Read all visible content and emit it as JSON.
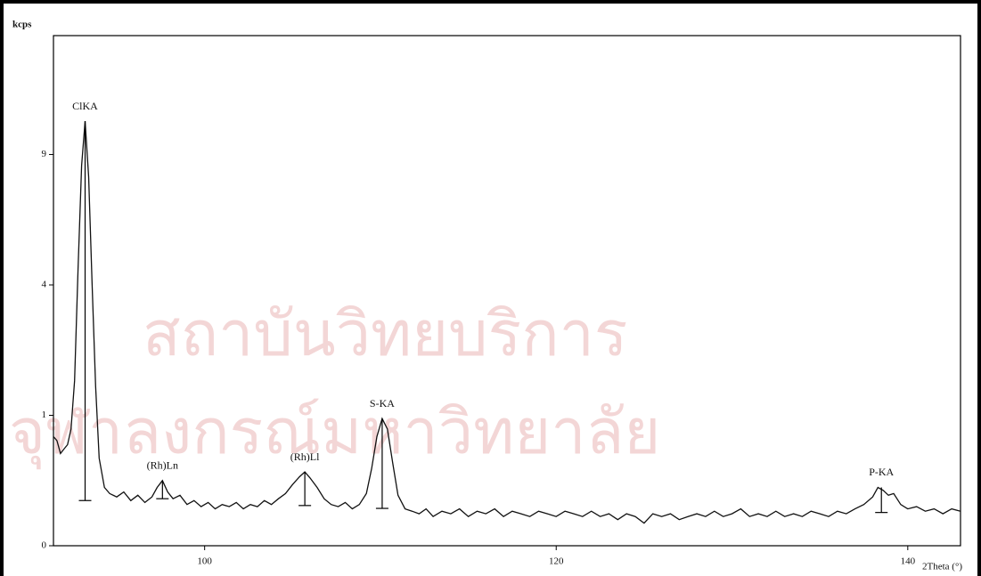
{
  "chart_data": {
    "type": "line",
    "y_axis_title": "kcps",
    "x_axis_title": "2Theta (°)",
    "watermark": [
      "สถาบันวิทยบริการ",
      "จุฬาลงกรณ์มหาวิทยาลัย"
    ],
    "y_scale": "sqrt",
    "xlim": [
      91.4,
      143.0
    ],
    "ylim": [
      0,
      15.3
    ],
    "xticks": [
      100,
      120,
      140
    ],
    "yticks": [
      0,
      1,
      4,
      9
    ],
    "series": [
      {
        "color": "#111111",
        "x": [
          91.4,
          91.6,
          91.8,
          92.0,
          92.2,
          92.4,
          92.6,
          92.8,
          93.0,
          93.2,
          93.4,
          93.6,
          93.8,
          94.0,
          94.3,
          94.6,
          95.0,
          95.4,
          95.8,
          96.2,
          96.6,
          97.0,
          97.3,
          97.6,
          97.9,
          98.2,
          98.6,
          99.0,
          99.4,
          99.8,
          100.2,
          100.6,
          101.0,
          101.4,
          101.8,
          102.2,
          102.6,
          103.0,
          103.4,
          103.8,
          104.2,
          104.6,
          105.0,
          105.4,
          105.7,
          106.0,
          106.4,
          106.8,
          107.2,
          107.6,
          108.0,
          108.4,
          108.8,
          109.2,
          109.5,
          109.8,
          110.1,
          110.4,
          110.7,
          111.0,
          111.4,
          111.8,
          112.2,
          112.6,
          113.0,
          113.5,
          114.0,
          114.5,
          115.0,
          115.5,
          116.0,
          116.5,
          117.0,
          117.5,
          118.0,
          118.5,
          119.0,
          119.5,
          120.0,
          120.5,
          121.0,
          121.5,
          122.0,
          122.5,
          123.0,
          123.5,
          124.0,
          124.5,
          125.0,
          125.5,
          126.0,
          126.5,
          127.0,
          127.5,
          128.0,
          128.5,
          129.0,
          129.5,
          130.0,
          130.5,
          131.0,
          131.5,
          132.0,
          132.5,
          133.0,
          133.5,
          134.0,
          134.5,
          135.0,
          135.5,
          136.0,
          136.5,
          137.0,
          137.5,
          138.0,
          138.3,
          138.6,
          138.9,
          139.2,
          139.6,
          140.0,
          140.5,
          141.0,
          141.5,
          142.0,
          142.5,
          143.0
        ],
        "values": [
          0.7,
          0.65,
          0.5,
          0.55,
          0.6,
          0.8,
          1.6,
          4.5,
          8.5,
          10.6,
          8.0,
          4.0,
          1.5,
          0.45,
          0.2,
          0.16,
          0.14,
          0.17,
          0.12,
          0.15,
          0.11,
          0.14,
          0.2,
          0.25,
          0.17,
          0.13,
          0.15,
          0.1,
          0.12,
          0.09,
          0.11,
          0.08,
          0.1,
          0.09,
          0.11,
          0.08,
          0.1,
          0.09,
          0.12,
          0.1,
          0.13,
          0.16,
          0.22,
          0.28,
          0.32,
          0.27,
          0.2,
          0.13,
          0.1,
          0.09,
          0.11,
          0.08,
          0.1,
          0.16,
          0.35,
          0.7,
          0.95,
          0.8,
          0.4,
          0.15,
          0.08,
          0.07,
          0.06,
          0.08,
          0.05,
          0.07,
          0.06,
          0.08,
          0.05,
          0.07,
          0.06,
          0.08,
          0.05,
          0.07,
          0.06,
          0.05,
          0.07,
          0.06,
          0.05,
          0.07,
          0.06,
          0.05,
          0.07,
          0.05,
          0.06,
          0.04,
          0.06,
          0.05,
          0.03,
          0.06,
          0.05,
          0.06,
          0.04,
          0.05,
          0.06,
          0.05,
          0.07,
          0.05,
          0.06,
          0.08,
          0.05,
          0.06,
          0.05,
          0.07,
          0.05,
          0.06,
          0.05,
          0.07,
          0.06,
          0.05,
          0.07,
          0.06,
          0.08,
          0.1,
          0.14,
          0.2,
          0.18,
          0.15,
          0.16,
          0.1,
          0.08,
          0.09,
          0.07,
          0.08,
          0.06,
          0.08,
          0.07
        ]
      }
    ],
    "peaks": [
      {
        "label": "ClKA",
        "x": 93.2,
        "top": 10.6,
        "bottom": 0.12
      },
      {
        "label": "(Rh)Ln",
        "x": 97.6,
        "top": 0.25,
        "bottom": 0.13
      },
      {
        "label": "(Rh)Ll",
        "x": 105.7,
        "top": 0.32,
        "bottom": 0.095
      },
      {
        "label": "S-KA",
        "x": 110.1,
        "top": 0.95,
        "bottom": 0.082
      },
      {
        "label": "P-KA",
        "x": 138.5,
        "top": 0.2,
        "bottom": 0.065
      }
    ]
  }
}
